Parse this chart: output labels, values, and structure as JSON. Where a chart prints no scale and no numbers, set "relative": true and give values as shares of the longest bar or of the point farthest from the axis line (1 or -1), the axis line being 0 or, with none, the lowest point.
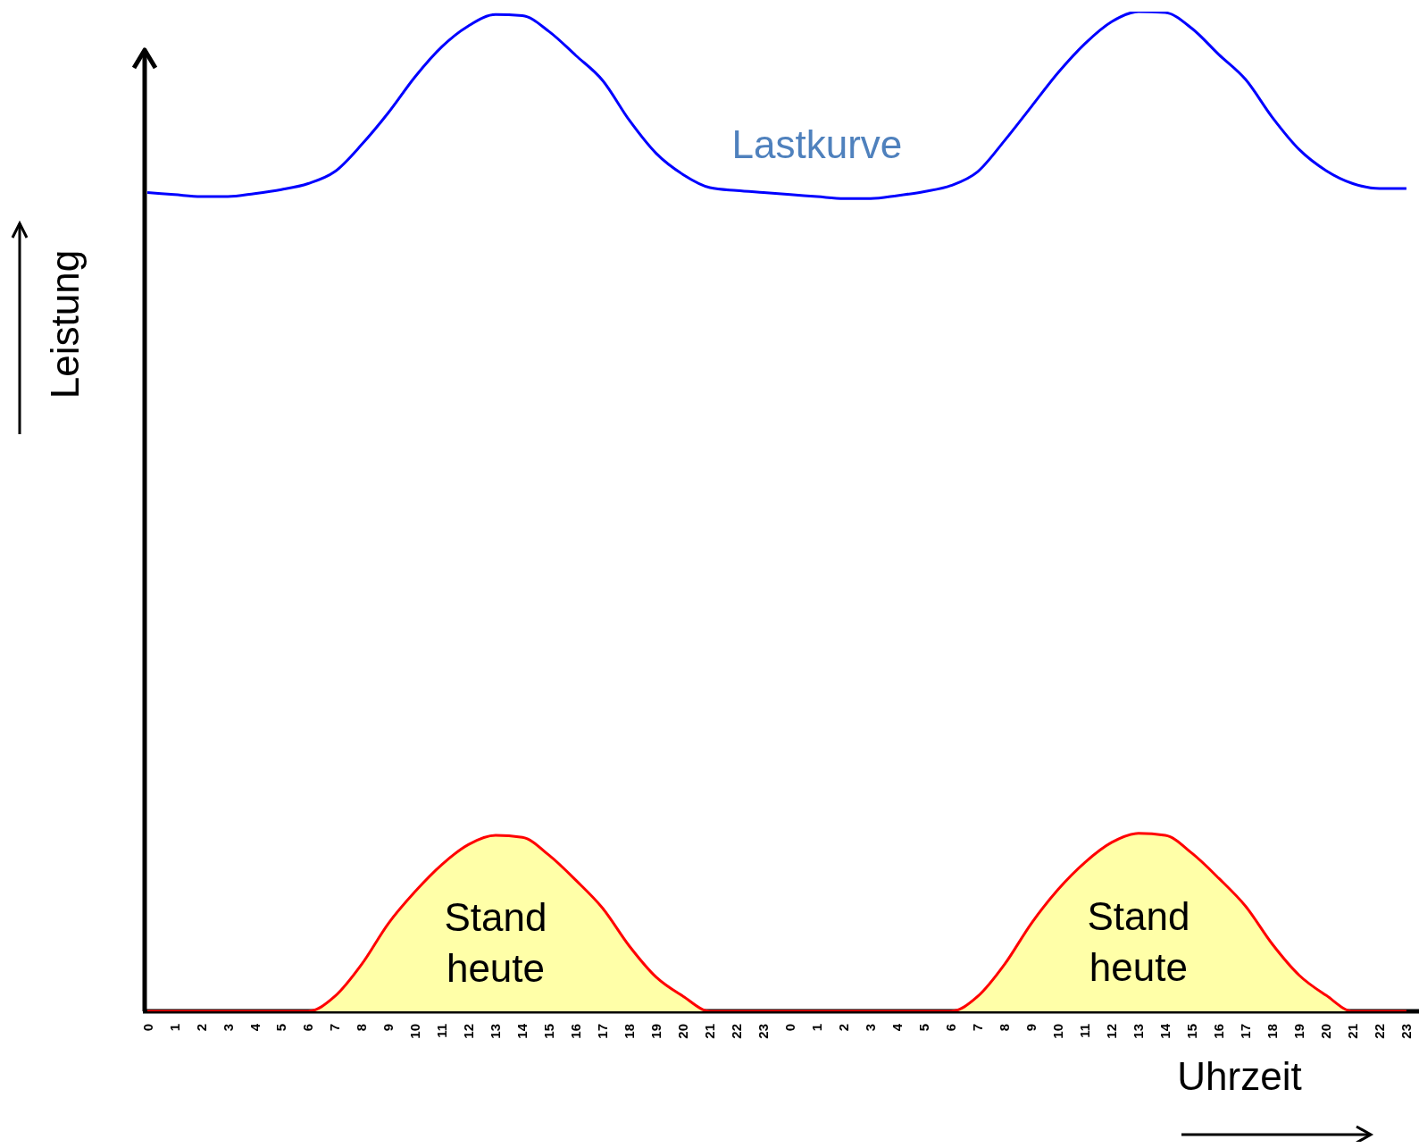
{
  "chart_data": {
    "type": "line",
    "relative": true,
    "xlabel": "Uhrzeit",
    "ylabel": "Leistung",
    "legend": false,
    "categories": [
      "0",
      "1",
      "2",
      "3",
      "4",
      "5",
      "6",
      "7",
      "8",
      "9",
      "10",
      "11",
      "12",
      "13",
      "14",
      "15",
      "16",
      "17",
      "18",
      "19",
      "20",
      "21",
      "22",
      "23",
      "0",
      "1",
      "2",
      "3",
      "4",
      "5",
      "6",
      "7",
      "8",
      "9",
      "10",
      "11",
      "12",
      "13",
      "14",
      "15",
      "16",
      "17",
      "18",
      "19",
      "20",
      "21",
      "22",
      "23"
    ],
    "series": [
      {
        "name": "Lastkurve",
        "color": "#0000ff",
        "values": [
          0.819,
          0.817,
          0.815,
          0.815,
          0.818,
          0.822,
          0.828,
          0.84,
          0.867,
          0.899,
          0.935,
          0.965,
          0.986,
          0.997,
          0.996,
          0.98,
          0.956,
          0.931,
          0.891,
          0.858,
          0.837,
          0.824,
          0.821,
          0.819,
          0.817,
          0.815,
          0.813,
          0.813,
          0.816,
          0.82,
          0.826,
          0.84,
          0.871,
          0.905,
          0.939,
          0.968,
          0.99,
          1,
          0.999,
          0.983,
          0.957,
          0.932,
          0.894,
          0.862,
          0.841,
          0.828,
          0.823,
          0.823
        ]
      },
      {
        "type": "area",
        "color": "#ffffa8",
        "values": [
          0,
          0,
          0,
          0,
          0,
          0,
          0,
          0.015,
          0.047,
          0.088,
          0.12,
          0.147,
          0.167,
          0.176,
          0.174,
          0.156,
          0.131,
          0.103,
          0.065,
          0.034,
          0.015,
          0,
          0,
          0,
          0,
          0,
          0,
          0,
          0,
          0,
          0,
          0.015,
          0.047,
          0.088,
          0.122,
          0.149,
          0.169,
          0.178,
          0.176,
          0.158,
          0.133,
          0.105,
          0.067,
          0.036,
          0.016,
          0,
          0,
          0
        ]
      }
    ],
    "annotations": [
      "Stand heute",
      "Stand heute"
    ]
  }
}
